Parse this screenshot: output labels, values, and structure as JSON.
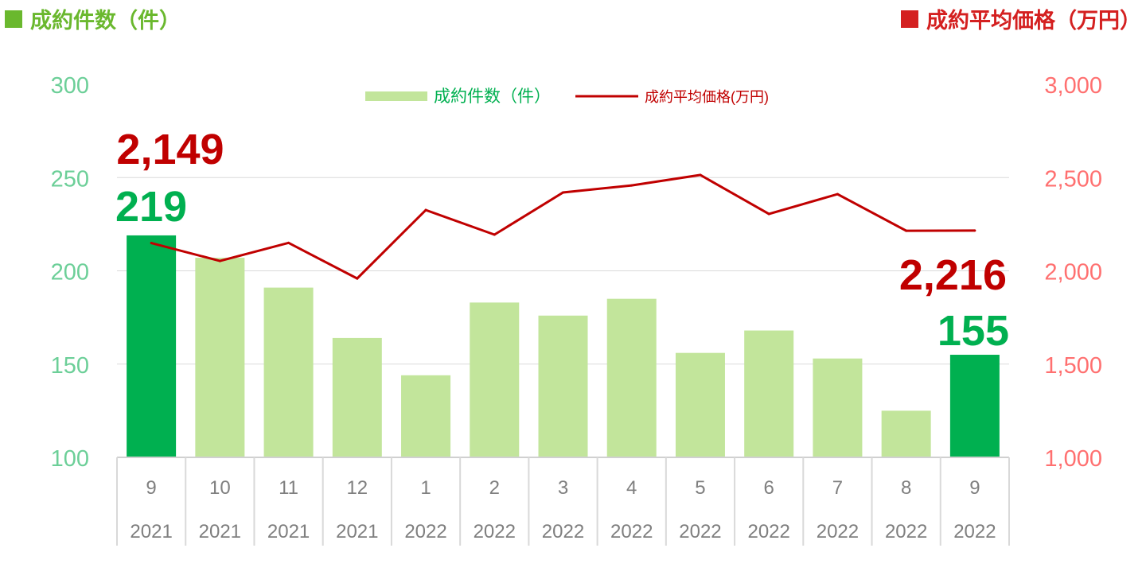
{
  "header": {
    "left_title": "成約件数（件）",
    "right_title": "成約平均価格（万円）",
    "left_color": "#6AB82E",
    "right_color": "#D42020"
  },
  "chart_data": {
    "type": "bar+line",
    "categories": [
      {
        "month": "9",
        "year": "2021"
      },
      {
        "month": "10",
        "year": "2021"
      },
      {
        "month": "11",
        "year": "2021"
      },
      {
        "month": "12",
        "year": "2021"
      },
      {
        "month": "1",
        "year": "2022"
      },
      {
        "month": "2",
        "year": "2022"
      },
      {
        "month": "3",
        "year": "2022"
      },
      {
        "month": "4",
        "year": "2022"
      },
      {
        "month": "5",
        "year": "2022"
      },
      {
        "month": "6",
        "year": "2022"
      },
      {
        "month": "7",
        "year": "2022"
      },
      {
        "month": "8",
        "year": "2022"
      },
      {
        "month": "9",
        "year": "2022"
      }
    ],
    "series": [
      {
        "name": "成約件数（件）",
        "type": "bar",
        "axis": "left",
        "values": [
          219,
          207,
          191,
          164,
          144,
          183,
          176,
          185,
          156,
          168,
          153,
          125,
          155
        ],
        "color": "#C2E59B",
        "highlight_color": "#00B050",
        "highlight_indices": [
          0,
          12
        ]
      },
      {
        "name": "成約平均価格(万円)",
        "type": "line",
        "axis": "right",
        "values": [
          2149,
          2053,
          2150,
          1959,
          2326,
          2194,
          2420,
          2458,
          2514,
          2305,
          2411,
          2215,
          2216
        ],
        "color": "#C00000"
      }
    ],
    "left_axis": {
      "range": [
        100,
        300
      ],
      "ticks": [
        "100",
        "150",
        "200",
        "250",
        "300"
      ],
      "color": "#6CCF98"
    },
    "right_axis": {
      "range": [
        1000,
        3000
      ],
      "ticks": [
        "1,000",
        "1,500",
        "2,000",
        "2,500",
        "3,000"
      ],
      "color": "#FF7070"
    },
    "annotations": [
      {
        "text": "2,149",
        "index": 0,
        "color": "#C00000"
      },
      {
        "text": "219",
        "index": 0,
        "color": "#00B050"
      },
      {
        "text": "2,216",
        "index": 12,
        "color": "#C00000"
      },
      {
        "text": "155",
        "index": 12,
        "color": "#00B050"
      }
    ],
    "legend": "top-center",
    "grid": true
  }
}
